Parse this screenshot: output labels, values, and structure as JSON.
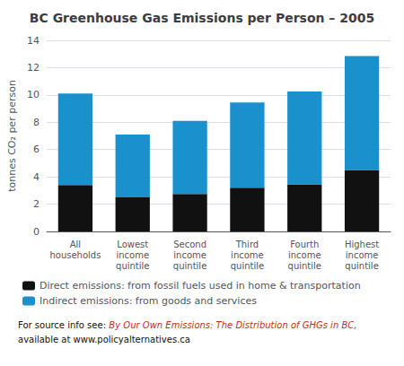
{
  "chart_data": {
    "type": "bar",
    "title": "BC Greenhouse Gas Emissions per Person – 2005",
    "ylabel": "tonnes CO₂ per person",
    "categories": [
      "All\nhouseholds",
      "Lowest\nincome\nquintile",
      "Second\nincome\nquintile",
      "Third\nincome\nquintile",
      "Fourth\nincome\nquintile",
      "Highest\nincome\nquintile"
    ],
    "series": [
      {
        "name": "Direct emissions: from fossil fuels used in home & transportation",
        "color": "#111111",
        "values": [
          3.4,
          2.5,
          2.75,
          3.2,
          3.45,
          4.5
        ]
      },
      {
        "name": "Indirect emissions: from goods and services",
        "color": "#1A90CC",
        "values": [
          6.7,
          4.6,
          5.35,
          6.25,
          6.8,
          8.35
        ]
      }
    ],
    "stacked": true,
    "ylim": [
      0,
      14
    ],
    "yticks": [
      0,
      2,
      4,
      6,
      8,
      10,
      12,
      14
    ],
    "grid": true,
    "annotations": [
      "For source info see:",
      "By Our Own Emissions: The Distribution of GHGs in BC,",
      "available at www.policyalternatives.ca"
    ]
  }
}
